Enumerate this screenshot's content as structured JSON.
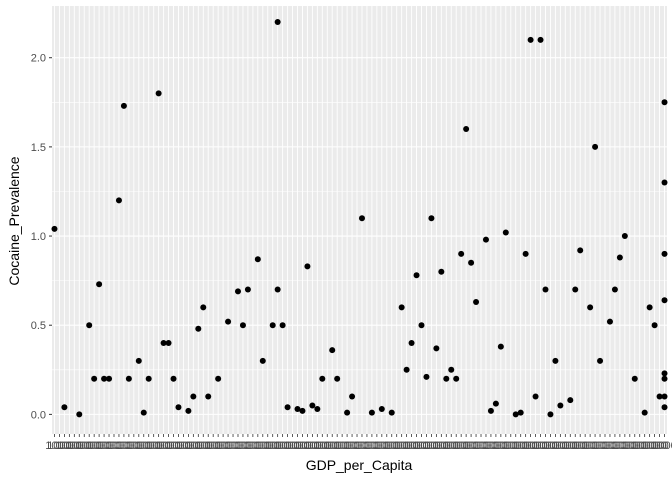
{
  "chart_data": {
    "type": "scatter",
    "xlabel": "GDP_per_Capita",
    "ylabel": "Cocaine_Prevalence",
    "x_axis": "categorical",
    "x_tick_labels_legible": [
      "100",
      "1000"
    ],
    "ylim": [
      -0.11,
      2.29
    ],
    "yticks": [
      0.0,
      0.5,
      1.0,
      1.5,
      2.0
    ],
    "ytick_labels": [
      "0.0",
      "0.5",
      "1.0",
      "1.5",
      "2.0"
    ],
    "grid": true,
    "panel_background": "#ebebeb",
    "grid_color": "#ffffff",
    "point_color": "#000000",
    "n_categories": 124,
    "points": [
      {
        "x": 1,
        "y": 1.04
      },
      {
        "x": 3,
        "y": 0.04
      },
      {
        "x": 6,
        "y": 0.0
      },
      {
        "x": 8,
        "y": 0.5
      },
      {
        "x": 9,
        "y": 0.2
      },
      {
        "x": 10,
        "y": 0.73
      },
      {
        "x": 11,
        "y": 0.2
      },
      {
        "x": 12,
        "y": 0.2
      },
      {
        "x": 14,
        "y": 1.2
      },
      {
        "x": 15,
        "y": 1.73
      },
      {
        "x": 16,
        "y": 0.2
      },
      {
        "x": 18,
        "y": 0.3
      },
      {
        "x": 19,
        "y": 0.01
      },
      {
        "x": 20,
        "y": 0.2
      },
      {
        "x": 22,
        "y": 1.8
      },
      {
        "x": 23,
        "y": 0.4
      },
      {
        "x": 24,
        "y": 0.4
      },
      {
        "x": 25,
        "y": 0.2
      },
      {
        "x": 26,
        "y": 0.04
      },
      {
        "x": 28,
        "y": 0.02
      },
      {
        "x": 29,
        "y": 0.1
      },
      {
        "x": 30,
        "y": 0.48
      },
      {
        "x": 31,
        "y": 0.6
      },
      {
        "x": 32,
        "y": 0.1
      },
      {
        "x": 34,
        "y": 0.2
      },
      {
        "x": 36,
        "y": 0.52
      },
      {
        "x": 38,
        "y": 0.69
      },
      {
        "x": 39,
        "y": 0.5
      },
      {
        "x": 40,
        "y": 0.7
      },
      {
        "x": 42,
        "y": 0.87
      },
      {
        "x": 43,
        "y": 0.3
      },
      {
        "x": 45,
        "y": 0.5
      },
      {
        "x": 46,
        "y": 0.7
      },
      {
        "x": 46,
        "y": 2.2
      },
      {
        "x": 47,
        "y": 0.5
      },
      {
        "x": 48,
        "y": 0.04
      },
      {
        "x": 50,
        "y": 0.03
      },
      {
        "x": 51,
        "y": 0.02
      },
      {
        "x": 52,
        "y": 0.83
      },
      {
        "x": 53,
        "y": 0.05
      },
      {
        "x": 54,
        "y": 0.03
      },
      {
        "x": 55,
        "y": 0.2
      },
      {
        "x": 57,
        "y": 0.36
      },
      {
        "x": 58,
        "y": 0.2
      },
      {
        "x": 60,
        "y": 0.01
      },
      {
        "x": 61,
        "y": 0.1
      },
      {
        "x": 63,
        "y": 1.1
      },
      {
        "x": 65,
        "y": 0.01
      },
      {
        "x": 67,
        "y": 0.03
      },
      {
        "x": 69,
        "y": 0.01
      },
      {
        "x": 71,
        "y": 0.6
      },
      {
        "x": 72,
        "y": 0.25
      },
      {
        "x": 73,
        "y": 0.4
      },
      {
        "x": 74,
        "y": 0.78
      },
      {
        "x": 75,
        "y": 0.5
      },
      {
        "x": 76,
        "y": 0.21
      },
      {
        "x": 77,
        "y": 1.1
      },
      {
        "x": 78,
        "y": 0.37
      },
      {
        "x": 79,
        "y": 0.8
      },
      {
        "x": 80,
        "y": 0.2
      },
      {
        "x": 81,
        "y": 0.25
      },
      {
        "x": 82,
        "y": 0.2
      },
      {
        "x": 83,
        "y": 0.9
      },
      {
        "x": 84,
        "y": 1.6
      },
      {
        "x": 85,
        "y": 0.85
      },
      {
        "x": 86,
        "y": 0.63
      },
      {
        "x": 88,
        "y": 0.98
      },
      {
        "x": 89,
        "y": 0.02
      },
      {
        "x": 90,
        "y": 0.06
      },
      {
        "x": 91,
        "y": 0.38
      },
      {
        "x": 92,
        "y": 1.02
      },
      {
        "x": 94,
        "y": 0.0
      },
      {
        "x": 95,
        "y": 0.01
      },
      {
        "x": 96,
        "y": 0.9
      },
      {
        "x": 97,
        "y": 2.1
      },
      {
        "x": 98,
        "y": 0.1
      },
      {
        "x": 99,
        "y": 2.1
      },
      {
        "x": 100,
        "y": 0.7
      },
      {
        "x": 101,
        "y": 0.0
      },
      {
        "x": 102,
        "y": 0.3
      },
      {
        "x": 103,
        "y": 0.05
      },
      {
        "x": 105,
        "y": 0.08
      },
      {
        "x": 106,
        "y": 0.7
      },
      {
        "x": 107,
        "y": 0.92
      },
      {
        "x": 109,
        "y": 0.6
      },
      {
        "x": 110,
        "y": 1.5
      },
      {
        "x": 111,
        "y": 0.3
      },
      {
        "x": 113,
        "y": 0.52
      },
      {
        "x": 114,
        "y": 0.7
      },
      {
        "x": 115,
        "y": 0.88
      },
      {
        "x": 116,
        "y": 1.0
      },
      {
        "x": 118,
        "y": 0.2
      },
      {
        "x": 120,
        "y": 0.01
      },
      {
        "x": 121,
        "y": 0.6
      },
      {
        "x": 122,
        "y": 0.5
      },
      {
        "x": 123,
        "y": 0.1
      },
      {
        "x": 124,
        "y": 1.75
      },
      {
        "x": 124,
        "y": 0.23
      },
      {
        "x": 124,
        "y": 0.04
      },
      {
        "x": 124,
        "y": 0.64
      },
      {
        "x": 124,
        "y": 0.2
      },
      {
        "x": 124,
        "y": 0.9
      },
      {
        "x": 124,
        "y": 1.3
      },
      {
        "x": 124,
        "y": 0.1
      }
    ]
  }
}
